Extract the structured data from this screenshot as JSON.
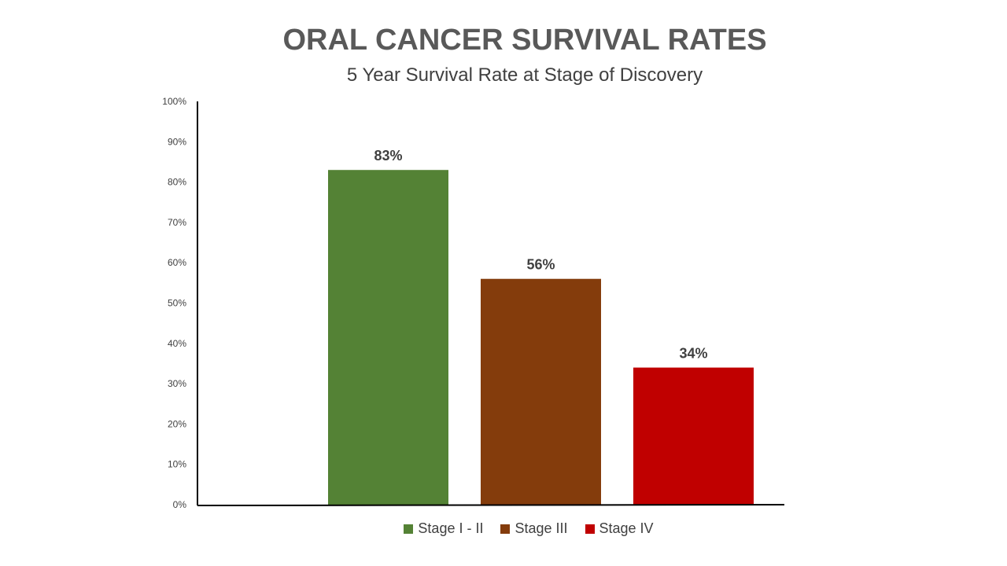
{
  "chart_data": {
    "type": "bar",
    "title": "ORAL CANCER SURVIVAL RATES",
    "subtitle": "5 Year Survival Rate at Stage of Discovery",
    "xlabel": "",
    "ylabel": "",
    "ylim": [
      0,
      100
    ],
    "yticks": [
      "0%",
      "10%",
      "20%",
      "30%",
      "40%",
      "50%",
      "60%",
      "70%",
      "80%",
      "90%",
      "100%"
    ],
    "grid": false,
    "legend_position": "bottom",
    "series": [
      {
        "name": "Stage I - II",
        "value": 83,
        "label": "83%",
        "color": "#548235"
      },
      {
        "name": "Stage III",
        "value": 56,
        "label": "56%",
        "color": "#843C0C"
      },
      {
        "name": "Stage IV",
        "value": 34,
        "label": "34%",
        "color": "#C00000"
      }
    ]
  }
}
